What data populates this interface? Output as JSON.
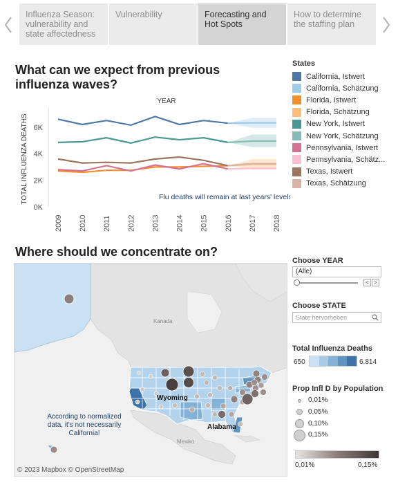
{
  "story_nav": {
    "tabs": [
      {
        "label": "Influenza Season: vulnerability and state affectedness",
        "active": false
      },
      {
        "label": "Vulnerability",
        "active": false
      },
      {
        "label": "Forecasting and Hot Spots",
        "active": true
      },
      {
        "label": "How to determine the staffing plan",
        "active": false
      }
    ],
    "prev_icon": "chevron-left-icon",
    "next_icon": "chevron-right-icon"
  },
  "chart_section": {
    "title": "What can we expect from previous influenza waves?",
    "annotation": "Flu deaths will remain at last years' levels"
  },
  "chart_data": {
    "type": "line",
    "header": "YEAR",
    "xlabel": "YEAR",
    "ylabel": "TOTAL INFLUENZA DEATHS",
    "x": [
      "2009",
      "2010",
      "2011",
      "2012",
      "2013",
      "2014",
      "2015",
      "2016",
      "2017",
      "2018"
    ],
    "y_ticks": [
      "0K",
      "2K",
      "4K",
      "6K"
    ],
    "ylim": [
      0,
      7500
    ],
    "grid": false,
    "series": [
      {
        "name": "California, Istwert",
        "color": "#4e79a7",
        "values": [
          6600,
          6200,
          6500,
          6150,
          6800,
          6200,
          6500,
          6300,
          null,
          null
        ]
      },
      {
        "name": "California, Schätzung",
        "color": "#a0cbe8",
        "values": [
          null,
          null,
          null,
          null,
          null,
          null,
          null,
          6300,
          6320,
          6320
        ],
        "band": [
          [
            6300,
            6300
          ],
          [
            5950,
            6700
          ],
          [
            5950,
            6700
          ]
        ]
      },
      {
        "name": "Florida, Istwert",
        "color": "#f28e2b",
        "values": [
          2700,
          2600,
          2750,
          2750,
          3000,
          3000,
          3050,
          3100,
          null,
          null
        ]
      },
      {
        "name": "Florida, Schätzung",
        "color": "#ffbe7d",
        "values": [
          null,
          null,
          null,
          null,
          null,
          null,
          null,
          3100,
          3200,
          3200
        ],
        "band": [
          [
            3100,
            3100
          ],
          [
            2800,
            3600
          ],
          [
            2800,
            3600
          ]
        ]
      },
      {
        "name": "New York, Istwert",
        "color": "#499894",
        "values": [
          4850,
          4900,
          5200,
          4800,
          5250,
          5050,
          5200,
          4850,
          null,
          null
        ]
      },
      {
        "name": "New York, Schätzung",
        "color": "#86bcb6",
        "values": [
          null,
          null,
          null,
          null,
          null,
          null,
          null,
          4850,
          4950,
          4950
        ],
        "band": [
          [
            4850,
            4850
          ],
          [
            4500,
            5450
          ],
          [
            4500,
            5450
          ]
        ]
      },
      {
        "name": "Pennsylvania, Istwert",
        "color": "#d37295",
        "values": [
          2800,
          2700,
          3100,
          2700,
          3150,
          2850,
          3250,
          2850,
          null,
          null
        ]
      },
      {
        "name": "Pennsylvania, Schätzung",
        "color": "#fabfd2",
        "values": [
          null,
          null,
          null,
          null,
          null,
          null,
          null,
          2850,
          2900,
          2900
        ]
      },
      {
        "name": "Texas, Istwert",
        "color": "#9d7660",
        "values": [
          3600,
          3300,
          3350,
          3300,
          3600,
          3750,
          3500,
          3100,
          null,
          null
        ]
      },
      {
        "name": "Texas, Schätzung",
        "color": "#d7b5a6",
        "values": [
          null,
          null,
          null,
          null,
          null,
          null,
          null,
          3100,
          3250,
          3250
        ]
      }
    ]
  },
  "legend": {
    "title": "States",
    "items": [
      {
        "label": "California, Istwert",
        "color": "#4e79a7"
      },
      {
        "label": "California, Schätzung",
        "color": "#a0cbe8"
      },
      {
        "label": "Florida, Istwert",
        "color": "#f28e2b"
      },
      {
        "label": "Florida, Schätzung",
        "color": "#ffbe7d"
      },
      {
        "label": "New York, Istwert",
        "color": "#499894"
      },
      {
        "label": "New York, Schätzung",
        "color": "#86bcb6"
      },
      {
        "label": "Pennsylvania, Istwert",
        "color": "#d37295"
      },
      {
        "label": "Pennsylvania, Schätz...",
        "color": "#fabfd2"
      },
      {
        "label": "Texas, Istwert",
        "color": "#9d7660"
      },
      {
        "label": "Texas, Schätzung",
        "color": "#d7b5a6"
      }
    ]
  },
  "map_section": {
    "title": "Where should we concentrate on?",
    "attribution": "© 2023 Mapbox  © OpenStreetMap",
    "note": "According to normalized data, it's not necessarily California!",
    "labels": {
      "wyoming": "Wyoming",
      "alabama": "Alabama",
      "kanada": "Kanada",
      "mexiko": "Mexiko"
    }
  },
  "filters": {
    "year": {
      "heading": "Choose YEAR",
      "value": "(Alle)",
      "prev": "<",
      "next": ">",
      "slider_position": 0
    },
    "state": {
      "heading": "Choose STATE",
      "placeholder": "State hervorheben"
    }
  },
  "deaths_legend": {
    "heading": "Total Influenza Deaths",
    "min": "650",
    "max": "6.814",
    "colors": [
      "#c9e1f2",
      "#a7cbe6",
      "#84b1d6",
      "#5f93c0",
      "#3d73a6"
    ]
  },
  "size_legend": {
    "heading": "Prop Infl D by Population",
    "items": [
      "0,01%",
      "0,05%",
      "0,10%",
      "0,15%"
    ]
  },
  "color_legend": {
    "min": "0,01%",
    "max": "0,15%"
  }
}
